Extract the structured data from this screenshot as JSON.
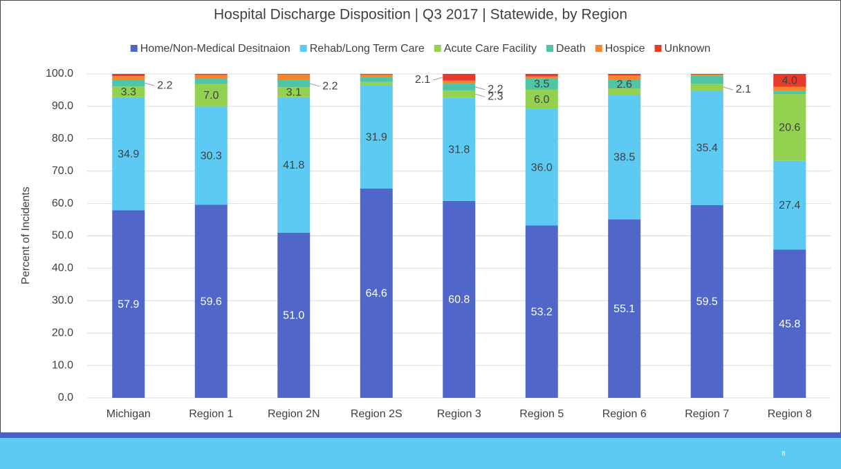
{
  "chart_data": {
    "type": "stacked_bar",
    "title": "Hospital Discharge Disposition | Q3 2017 | Statewide, by Region",
    "y_label": "Percent of Incidents",
    "categories": [
      "Michigan",
      "Region 1",
      "Region 2N",
      "Region 2S",
      "Region 3",
      "Region 5",
      "Region 6",
      "Region 7",
      "Region 8"
    ],
    "series": [
      {
        "name": "Home/Non-Medical Desitnaion",
        "color": "#5066c9",
        "values": [
          57.9,
          59.6,
          51.0,
          64.6,
          60.8,
          53.2,
          55.1,
          59.5,
          45.8
        ],
        "value_labels": [
          "57.9",
          "59.6",
          "51.0",
          "64.6",
          "60.8",
          "53.2",
          "55.1",
          "59.5",
          "45.8"
        ]
      },
      {
        "name": "Rehab/Long Term Care",
        "color": "#5ccaf2",
        "values": [
          34.9,
          30.3,
          41.8,
          31.9,
          31.8,
          36.0,
          38.5,
          35.4,
          27.4
        ],
        "value_labels": [
          "34.9",
          "30.3",
          "41.8",
          "31.9",
          "31.8",
          "36.0",
          "38.5",
          "35.4",
          "27.4"
        ]
      },
      {
        "name": "Acute Care Facility",
        "color": "#93d150",
        "values": [
          3.3,
          7.0,
          3.1,
          1.0,
          2.3,
          6.0,
          1.9,
          2.1,
          20.6
        ],
        "value_labels": [
          "3.3",
          "7.0",
          "3.1",
          null,
          "2.3",
          "6.0",
          null,
          "2.1",
          "20.6"
        ]
      },
      {
        "name": "Death",
        "color": "#4fc5a6",
        "values": [
          2.2,
          1.6,
          2.2,
          1.5,
          2.2,
          3.5,
          2.6,
          2.5,
          1.0
        ],
        "value_labels": [
          "2.2",
          null,
          "2.2",
          null,
          "2.2",
          "3.5",
          "2.6",
          null,
          null
        ]
      },
      {
        "name": "Hospice",
        "color": "#f5842a",
        "values": [
          1.0,
          1.2,
          1.7,
          0.8,
          0.8,
          0.5,
          1.4,
          0.3,
          1.2
        ],
        "value_labels": [
          null,
          null,
          null,
          null,
          null,
          null,
          null,
          null,
          null
        ]
      },
      {
        "name": "Unknown",
        "color": "#e83a2a",
        "values": [
          0.7,
          0.3,
          0.2,
          0.2,
          2.1,
          0.8,
          0.5,
          0.2,
          4.0
        ],
        "value_labels": [
          null,
          null,
          null,
          null,
          "2.1",
          null,
          null,
          null,
          "4.0"
        ]
      }
    ],
    "ylim": [
      0,
      100
    ],
    "yticks": [
      {
        "value": 0,
        "label": "0.0"
      },
      {
        "value": 10,
        "label": "10.0"
      },
      {
        "value": 20,
        "label": "20.0"
      },
      {
        "value": 30,
        "label": "30.0"
      },
      {
        "value": 40,
        "label": "40.0"
      },
      {
        "value": 50,
        "label": "50.0"
      },
      {
        "value": 60,
        "label": "60.0"
      },
      {
        "value": 70,
        "label": "70.0"
      },
      {
        "value": 80,
        "label": "80.0"
      },
      {
        "value": 90,
        "label": "90.0"
      },
      {
        "value": 100,
        "label": "100.0"
      }
    ],
    "grid": true,
    "legend": "top"
  },
  "page_number": "8"
}
